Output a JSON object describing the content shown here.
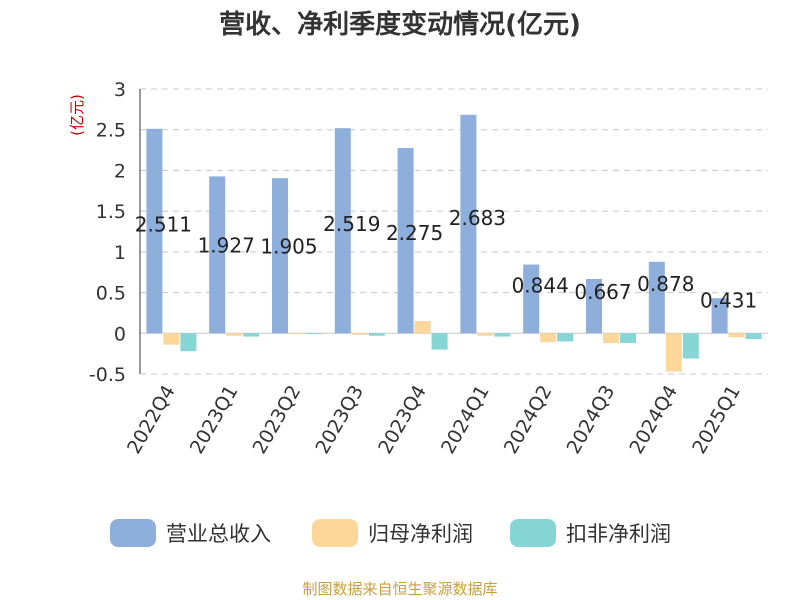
{
  "chart_data": {
    "type": "bar",
    "title": "营收、净利季度变动情况(亿元)",
    "unit_label": "(亿元)",
    "categories": [
      "2022Q4",
      "2023Q1",
      "2023Q2",
      "2023Q3",
      "2023Q4",
      "2024Q1",
      "2024Q2",
      "2024Q3",
      "2024Q4",
      "2025Q1"
    ],
    "series": [
      {
        "name": "营业总收入",
        "color": "#8eaedb",
        "values": [
          2.511,
          1.927,
          1.905,
          2.519,
          2.275,
          2.683,
          0.844,
          0.667,
          0.878,
          0.431
        ]
      },
      {
        "name": "归母净利润",
        "color": "#fdd69a",
        "values": [
          -0.14,
          -0.03,
          -0.01,
          -0.02,
          0.15,
          -0.03,
          -0.11,
          -0.12,
          -0.47,
          -0.05
        ]
      },
      {
        "name": "扣非净利润",
        "color": "#86d6d6",
        "values": [
          -0.22,
          -0.04,
          -0.01,
          -0.03,
          -0.2,
          -0.04,
          -0.1,
          -0.12,
          -0.31,
          -0.07
        ]
      }
    ],
    "data_labels": [
      "2.511",
      "1.927",
      "1.905",
      "2.519",
      "2.275",
      "2.683",
      "0.844",
      "0.667",
      "0.878",
      "0.431"
    ],
    "yticks": [
      "3",
      "2.5",
      "2",
      "1.5",
      "1",
      "0.5",
      "0",
      "-0.5"
    ],
    "ytick_values": [
      3,
      2.5,
      2,
      1.5,
      1,
      0.5,
      0,
      -0.5
    ],
    "ylim": [
      -0.5,
      3
    ],
    "grid": true,
    "legend_position": "bottom"
  },
  "source_text": "制图数据来自恒生聚源数据库"
}
